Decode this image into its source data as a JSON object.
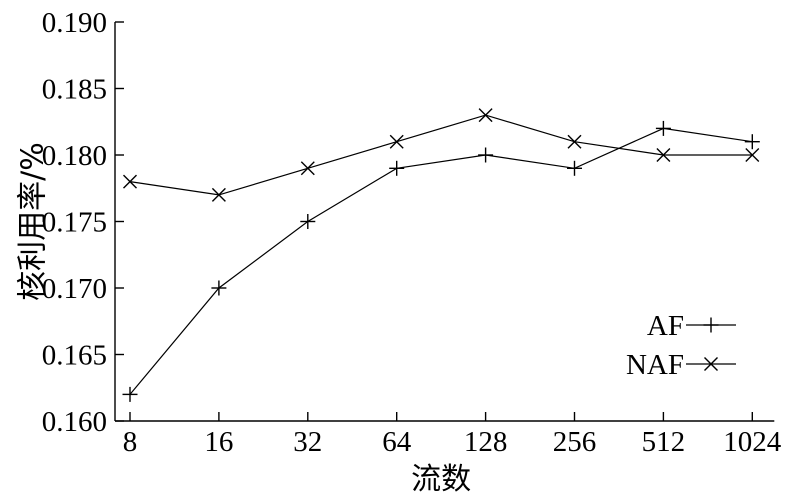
{
  "chart_data": {
    "type": "line",
    "title": "",
    "xlabel": "流数",
    "ylabel": "核利用率/%",
    "categories": [
      "8",
      "16",
      "32",
      "64",
      "128",
      "256",
      "512",
      "1024"
    ],
    "ylim": [
      0.16,
      0.19
    ],
    "yticks": [
      "0.160",
      "0.165",
      "0.170",
      "0.175",
      "0.180",
      "0.185",
      "0.190"
    ],
    "grid": false,
    "legend_position": "bottom-right",
    "series": [
      {
        "name": "AF",
        "marker": "plus",
        "values": [
          0.162,
          0.17,
          0.175,
          0.179,
          0.18,
          0.179,
          0.182,
          0.181
        ]
      },
      {
        "name": "NAF",
        "marker": "cross",
        "values": [
          0.178,
          0.177,
          0.179,
          0.181,
          0.183,
          0.181,
          0.18,
          0.18
        ]
      }
    ]
  }
}
